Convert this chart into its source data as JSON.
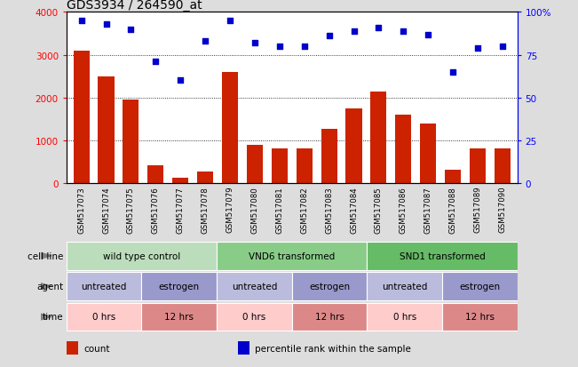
{
  "title": "GDS3934 / 264590_at",
  "samples": [
    "GSM517073",
    "GSM517074",
    "GSM517075",
    "GSM517076",
    "GSM517077",
    "GSM517078",
    "GSM517079",
    "GSM517080",
    "GSM517081",
    "GSM517082",
    "GSM517083",
    "GSM517084",
    "GSM517085",
    "GSM517086",
    "GSM517087",
    "GSM517088",
    "GSM517089",
    "GSM517090"
  ],
  "counts": [
    3100,
    2500,
    1950,
    420,
    120,
    260,
    2600,
    900,
    800,
    800,
    1270,
    1750,
    2130,
    1600,
    1390,
    320,
    800,
    800
  ],
  "percentiles": [
    95,
    93,
    90,
    71,
    60,
    83,
    95,
    82,
    80,
    80,
    86,
    89,
    91,
    89,
    87,
    65,
    79,
    80
  ],
  "bar_color": "#CC2200",
  "dot_color": "#0000CC",
  "ylim_left": [
    0,
    4000
  ],
  "ylim_right": [
    0,
    100
  ],
  "yticks_left": [
    0,
    1000,
    2000,
    3000,
    4000
  ],
  "yticks_right": [
    0,
    25,
    50,
    75,
    100
  ],
  "ytick_labels_right": [
    "0",
    "25",
    "50",
    "75",
    "100%"
  ],
  "cell_line_groups": [
    {
      "label": "wild type control",
      "start": 0,
      "end": 6,
      "color": "#BBDDBB"
    },
    {
      "label": "VND6 transformed",
      "start": 6,
      "end": 12,
      "color": "#88CC88"
    },
    {
      "label": "SND1 transformed",
      "start": 12,
      "end": 18,
      "color": "#66BB66"
    }
  ],
  "agent_groups": [
    {
      "label": "untreated",
      "start": 0,
      "end": 3,
      "color": "#BBBBDD"
    },
    {
      "label": "estrogen",
      "start": 3,
      "end": 6,
      "color": "#9999CC"
    },
    {
      "label": "untreated",
      "start": 6,
      "end": 9,
      "color": "#BBBBDD"
    },
    {
      "label": "estrogen",
      "start": 9,
      "end": 12,
      "color": "#9999CC"
    },
    {
      "label": "untreated",
      "start": 12,
      "end": 15,
      "color": "#BBBBDD"
    },
    {
      "label": "estrogen",
      "start": 15,
      "end": 18,
      "color": "#9999CC"
    }
  ],
  "time_groups": [
    {
      "label": "0 hrs",
      "start": 0,
      "end": 3,
      "color": "#FFCCCC"
    },
    {
      "label": "12 hrs",
      "start": 3,
      "end": 6,
      "color": "#DD8888"
    },
    {
      "label": "0 hrs",
      "start": 6,
      "end": 9,
      "color": "#FFCCCC"
    },
    {
      "label": "12 hrs",
      "start": 9,
      "end": 12,
      "color": "#DD8888"
    },
    {
      "label": "0 hrs",
      "start": 12,
      "end": 15,
      "color": "#FFCCCC"
    },
    {
      "label": "12 hrs",
      "start": 15,
      "end": 18,
      "color": "#DD8888"
    }
  ],
  "row_labels": [
    "cell line",
    "agent",
    "time"
  ],
  "legend_items": [
    {
      "color": "#CC2200",
      "label": "count"
    },
    {
      "color": "#0000CC",
      "label": "percentile rank within the sample"
    }
  ],
  "fig_bg": "#DDDDDD",
  "plot_bg": "#FFFFFF"
}
